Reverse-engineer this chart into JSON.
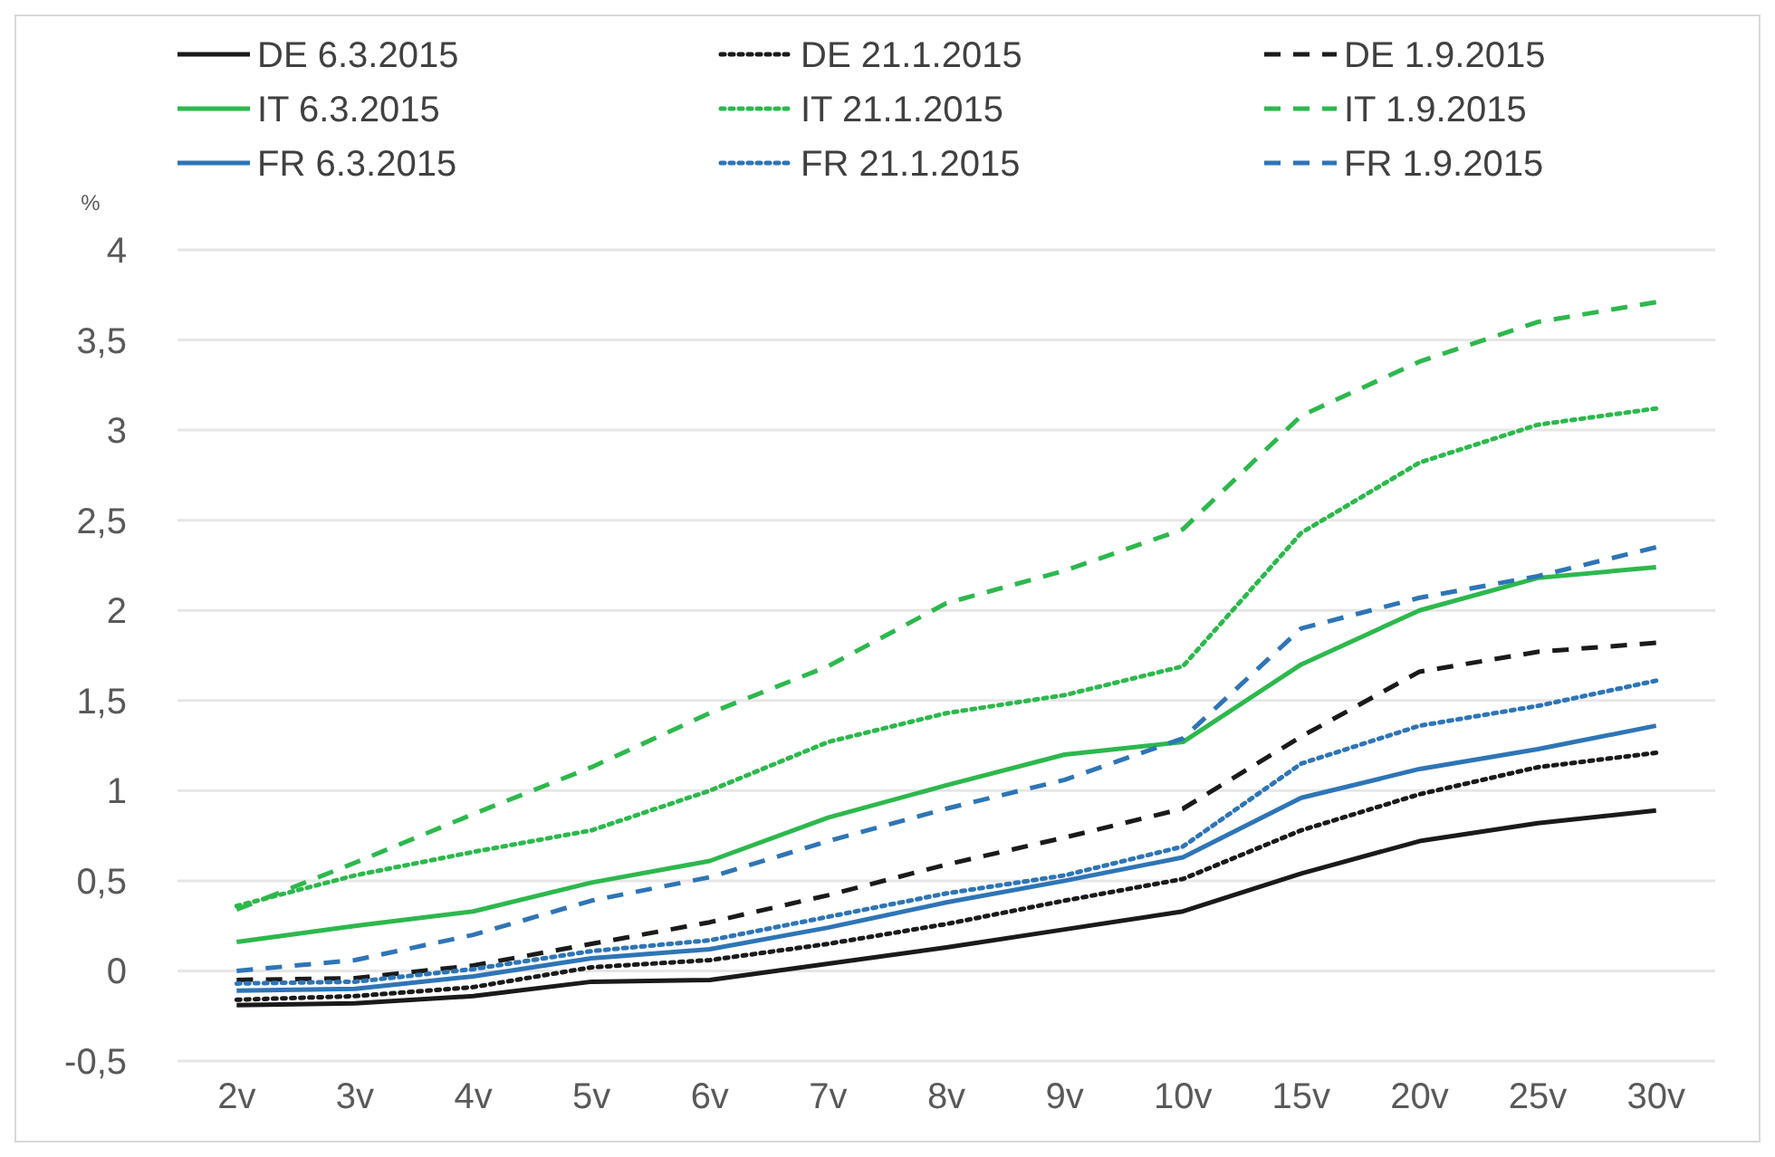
{
  "chart_data": {
    "type": "line",
    "ylabel": "%",
    "categories": [
      "2v",
      "3v",
      "4v",
      "5v",
      "6v",
      "7v",
      "8v",
      "9v",
      "10v",
      "15v",
      "20v",
      "25v",
      "30v"
    ],
    "ylim": [
      -0.5,
      4
    ],
    "yticks": [
      {
        "value": -0.5,
        "label": "-0,5"
      },
      0,
      {
        "value": 0.5,
        "label": "0,5"
      },
      1,
      {
        "value": 1.5,
        "label": "1,5"
      },
      2,
      {
        "value": 2.5,
        "label": "2,5"
      },
      3,
      {
        "value": 3.5,
        "label": "3,5"
      },
      4
    ],
    "grid": "y",
    "legend": "top",
    "marker": "none",
    "series": [
      {
        "name": "DE 6.3.2015",
        "color": "#1a1a1a",
        "line_style": "solid",
        "values": [
          -0.19,
          -0.18,
          -0.14,
          -0.06,
          -0.05,
          0.04,
          0.13,
          0.23,
          0.33,
          0.54,
          0.72,
          0.82,
          0.89
        ]
      },
      {
        "name": "DE 21.1.2015",
        "color": "#1a1a1a",
        "line_style": "dotted",
        "values": [
          -0.16,
          -0.14,
          -0.09,
          0.02,
          0.06,
          0.15,
          0.26,
          0.39,
          0.51,
          0.78,
          0.98,
          1.13,
          1.21
        ]
      },
      {
        "name": "DE 1.9.2015",
        "color": "#1a1a1a",
        "line_style": "dashed",
        "values": [
          -0.05,
          -0.04,
          0.03,
          0.15,
          0.27,
          0.42,
          0.59,
          0.74,
          0.9,
          1.3,
          1.66,
          1.77,
          1.82
        ]
      },
      {
        "name": "IT 6.3.2015",
        "color": "#2db84d",
        "line_style": "solid",
        "values": [
          0.16,
          0.25,
          0.33,
          0.49,
          0.61,
          0.85,
          1.03,
          1.2,
          1.27,
          1.7,
          2.0,
          2.18,
          2.24
        ]
      },
      {
        "name": "IT 21.1.2015",
        "color": "#2db84d",
        "line_style": "dotted",
        "values": [
          0.36,
          0.53,
          0.66,
          0.78,
          1.0,
          1.27,
          1.43,
          1.53,
          1.69,
          2.43,
          2.82,
          3.03,
          3.12
        ]
      },
      {
        "name": "IT 1.9.2015",
        "color": "#2db84d",
        "line_style": "dashed",
        "values": [
          0.34,
          0.6,
          0.87,
          1.13,
          1.43,
          1.69,
          2.04,
          2.22,
          2.45,
          3.08,
          3.38,
          3.6,
          3.71
        ]
      },
      {
        "name": "FR 6.3.2015",
        "color": "#2e75b6",
        "line_style": "solid",
        "values": [
          -0.11,
          -0.1,
          -0.03,
          0.07,
          0.12,
          0.24,
          0.38,
          0.5,
          0.63,
          0.96,
          1.12,
          1.23,
          1.36
        ]
      },
      {
        "name": "FR 21.1.2015",
        "color": "#2e75b6",
        "line_style": "dotted",
        "values": [
          -0.07,
          -0.06,
          0.01,
          0.11,
          0.17,
          0.3,
          0.43,
          0.53,
          0.69,
          1.15,
          1.36,
          1.47,
          1.61
        ]
      },
      {
        "name": "FR 1.9.2015",
        "color": "#2e75b6",
        "line_style": "dashed",
        "values": [
          0.0,
          0.06,
          0.2,
          0.39,
          0.52,
          0.72,
          0.9,
          1.06,
          1.29,
          1.9,
          2.07,
          2.19,
          2.35
        ]
      }
    ]
  }
}
